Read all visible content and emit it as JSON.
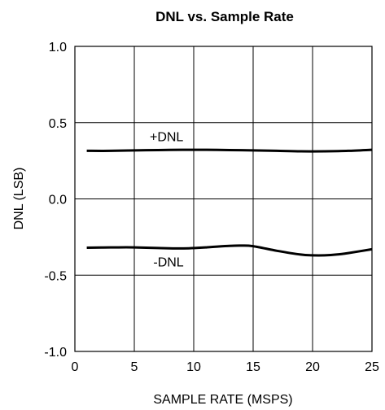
{
  "chart_data": {
    "type": "line",
    "title": "DNL vs. Sample Rate",
    "xlabel": "SAMPLE RATE (MSPS)",
    "ylabel": "DNL (LSB)",
    "xlim": [
      0,
      25
    ],
    "ylim": [
      -1.0,
      1.0
    ],
    "x_ticks": [
      "0",
      "5",
      "10",
      "15",
      "20",
      "25"
    ],
    "x_tick_values": [
      0,
      5,
      10,
      15,
      20,
      25
    ],
    "y_ticks": [
      "1.0",
      "0.5",
      "0.0",
      "-0.5",
      "-1.0"
    ],
    "y_tick_values": [
      1.0,
      0.5,
      0.0,
      -0.5,
      -1.0
    ],
    "grid": true,
    "legend": "none",
    "series": [
      {
        "name": "+DNL",
        "x": [
          1,
          3,
          5,
          7,
          9,
          11,
          13,
          15,
          17,
          19,
          21,
          23,
          25
        ],
        "values": [
          0.315,
          0.315,
          0.318,
          0.32,
          0.322,
          0.322,
          0.32,
          0.318,
          0.315,
          0.312,
          0.312,
          0.315,
          0.322
        ],
        "color": "#000000"
      },
      {
        "name": "-DNL",
        "x": [
          1,
          3,
          5,
          7,
          9,
          11,
          13,
          14,
          15,
          17,
          19,
          20,
          21,
          22,
          23,
          25
        ],
        "values": [
          -0.32,
          -0.318,
          -0.318,
          -0.322,
          -0.325,
          -0.318,
          -0.308,
          -0.306,
          -0.31,
          -0.34,
          -0.365,
          -0.37,
          -0.37,
          -0.365,
          -0.355,
          -0.33
        ],
        "color": "#000000"
      }
    ],
    "series_labels": [
      {
        "text": "+DNL",
        "x": 6.3,
        "y": 0.41
      },
      {
        "text": "-DNL",
        "x": 6.6,
        "y": -0.41
      }
    ]
  }
}
